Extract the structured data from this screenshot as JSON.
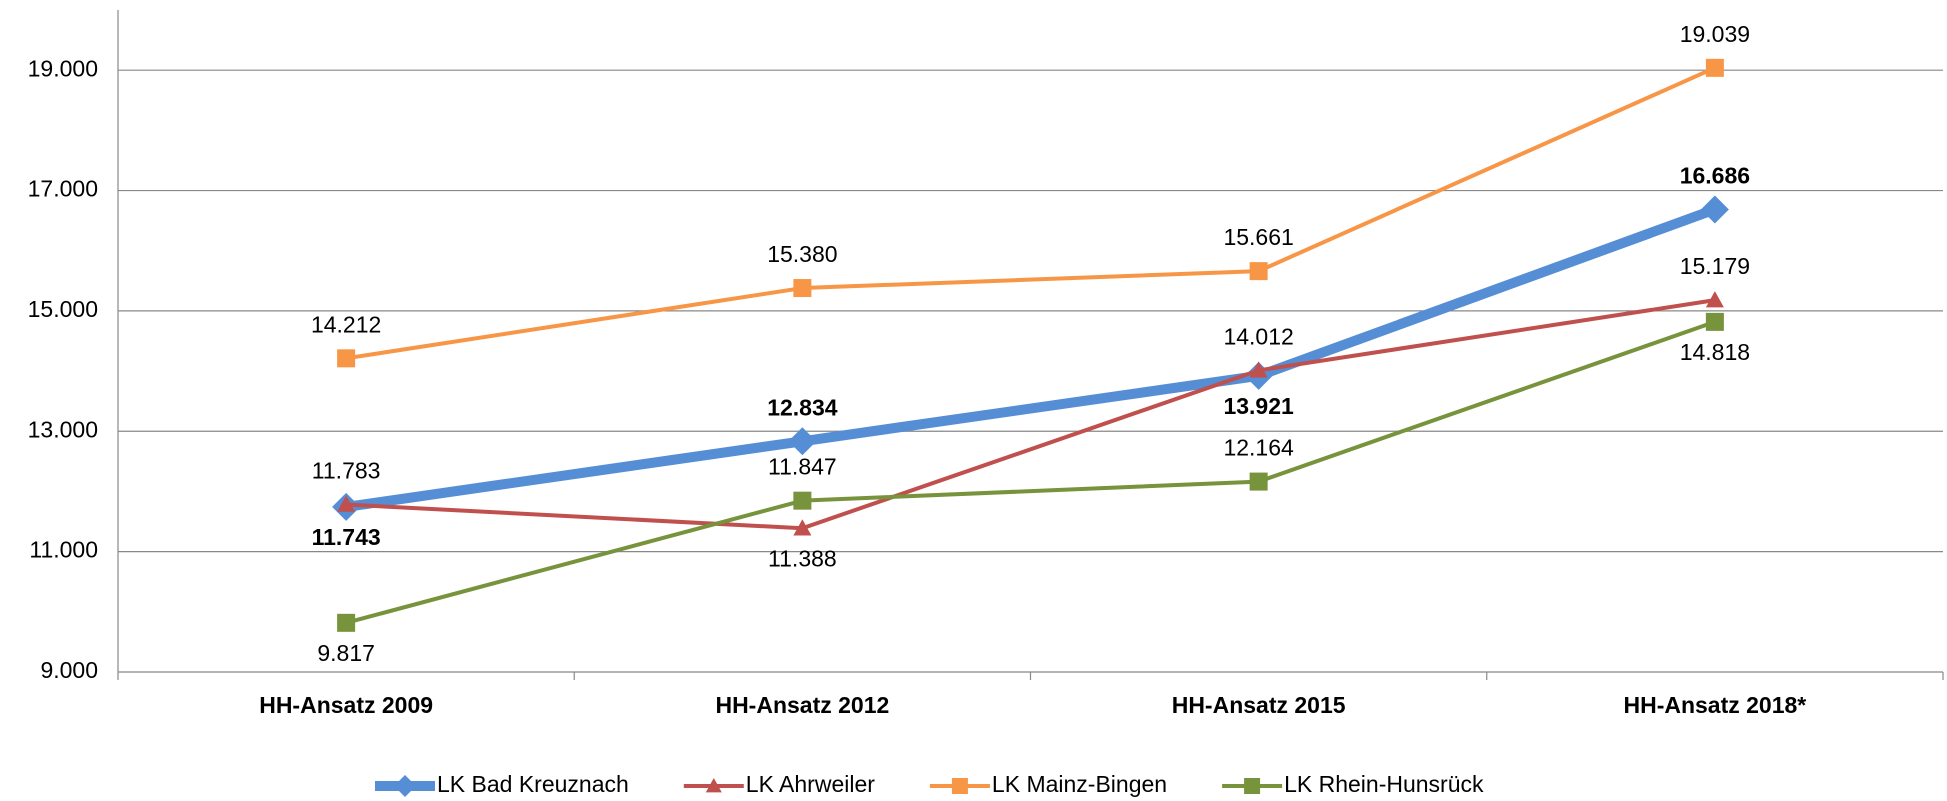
{
  "chart_data": {
    "type": "line",
    "categories": [
      "HH-Ansatz 2009",
      "HH-Ansatz 2012",
      "HH-Ansatz 2015",
      "HH-Ansatz 2018*"
    ],
    "ylim": [
      9000,
      20000
    ],
    "yticks": [
      {
        "value": 9000,
        "label": "9.000"
      },
      {
        "value": 11000,
        "label": "11.000"
      },
      {
        "value": 13000,
        "label": "13.000"
      },
      {
        "value": 15000,
        "label": "15.000"
      },
      {
        "value": 17000,
        "label": "17.000"
      },
      {
        "value": 19000,
        "label": "19.000"
      }
    ],
    "grid": true,
    "legend": "bottom",
    "series": [
      {
        "name": "LK Bad Kreuznach",
        "color": "#558ed5",
        "marker": "diamond",
        "values": [
          11743,
          12834,
          13921,
          16686
        ],
        "value_labels": [
          "11.743",
          "12.834",
          "13.921",
          "16.686"
        ]
      },
      {
        "name": "LK Ahrweiler",
        "color": "#c0504d",
        "marker": "triangle",
        "values": [
          11783,
          11388,
          14012,
          15179
        ],
        "value_labels": [
          "11.783",
          "11.388",
          "14.012",
          "15.179"
        ]
      },
      {
        "name": "LK Mainz-Bingen",
        "color": "#f79646",
        "marker": "square",
        "values": [
          14212,
          15380,
          15661,
          19039
        ],
        "value_labels": [
          "14.212",
          "15.380",
          "15.661",
          "19.039"
        ]
      },
      {
        "name": "LK Rhein-Hunsrück",
        "color": "#77933c",
        "marker": "square",
        "values": [
          9817,
          11847,
          12164,
          14818
        ],
        "value_labels": [
          "9.817",
          "11.847",
          "12.164",
          "14.818"
        ]
      }
    ]
  }
}
